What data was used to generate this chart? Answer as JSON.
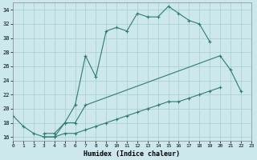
{
  "xlabel": "Humidex (Indice chaleur)",
  "background_color": "#cce8ed",
  "grid_color": "#b0d4da",
  "line_color": "#2e7d6e",
  "series1_x": [
    0,
    1,
    2,
    3,
    4,
    5,
    6,
    7,
    8,
    9,
    10,
    11,
    12,
    13,
    14,
    15,
    16,
    17,
    18,
    19
  ],
  "series1_y": [
    19.0,
    17.5,
    16.5,
    16.0,
    16.0,
    18.0,
    20.5,
    27.5,
    24.5,
    31.0,
    31.5,
    31.0,
    33.5,
    33.0,
    33.0,
    34.5,
    33.5,
    32.5,
    32.0,
    29.5
  ],
  "series2_x": [
    3,
    4,
    5,
    6,
    7,
    20,
    21,
    22
  ],
  "series2_y": [
    16.5,
    16.5,
    18.0,
    18.0,
    20.5,
    27.5,
    25.5,
    22.5
  ],
  "series3_x": [
    3,
    4,
    5,
    6,
    7,
    8,
    9,
    10,
    11,
    12,
    13,
    14,
    15,
    16,
    17,
    18,
    19,
    20
  ],
  "series3_y": [
    16.0,
    16.0,
    16.5,
    16.5,
    17.0,
    17.5,
    18.0,
    18.5,
    19.0,
    19.5,
    20.0,
    20.5,
    21.0,
    21.0,
    21.5,
    22.0,
    22.5,
    23.0
  ],
  "xlim": [
    0,
    23
  ],
  "ylim": [
    15.5,
    35.0
  ],
  "yticks": [
    16,
    18,
    20,
    22,
    24,
    26,
    28,
    30,
    32,
    34
  ],
  "xticks": [
    0,
    1,
    2,
    3,
    4,
    5,
    6,
    7,
    8,
    9,
    10,
    11,
    12,
    13,
    14,
    15,
    16,
    17,
    18,
    19,
    20,
    21,
    22,
    23
  ]
}
